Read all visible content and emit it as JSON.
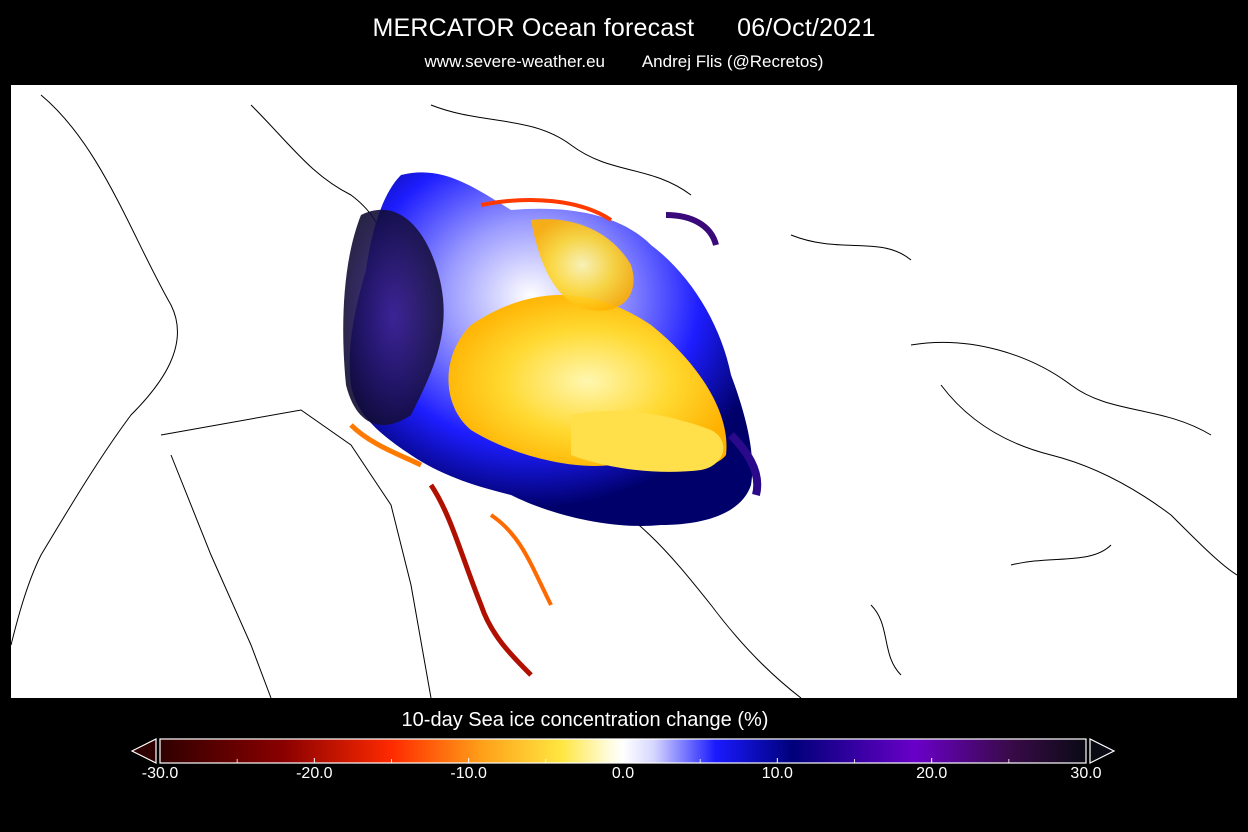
{
  "header": {
    "title": "MERCATOR Ocean forecast      06/Oct/2021",
    "subtitle": "www.severe-weather.eu        Andrej Flis (@Recretos)"
  },
  "map": {
    "region": "Arctic Ocean (polar stereographic)",
    "field": "sea ice concentration change",
    "background_color": "#ffffff",
    "coastline_color": "#000000"
  },
  "colorbar": {
    "title": "10-day Sea ice concentration change (%)",
    "min": -30,
    "max": 30,
    "extend": "both",
    "tick_labels": [
      "-30.0",
      "-20.0",
      "-10.0",
      "0.0",
      "10.0",
      "20.0",
      "30.0"
    ],
    "tick_values": [
      -30,
      -20,
      -10,
      0,
      10,
      20,
      30
    ],
    "stops": [
      {
        "value": -30,
        "color": "#300000"
      },
      {
        "value": -22,
        "color": "#8a0000"
      },
      {
        "value": -15,
        "color": "#ff2a00"
      },
      {
        "value": -9,
        "color": "#ffa21a"
      },
      {
        "value": -4,
        "color": "#ffe640"
      },
      {
        "value": -1,
        "color": "#fffbd8"
      },
      {
        "value": 0,
        "color": "#ffffff"
      },
      {
        "value": 2,
        "color": "#d6d6ff"
      },
      {
        "value": 6,
        "color": "#1a1aff"
      },
      {
        "value": 11,
        "color": "#00007a"
      },
      {
        "value": 19,
        "color": "#6a00c8"
      },
      {
        "value": 25,
        "color": "#3a0a4a"
      },
      {
        "value": 30,
        "color": "#0a0a14"
      }
    ]
  }
}
